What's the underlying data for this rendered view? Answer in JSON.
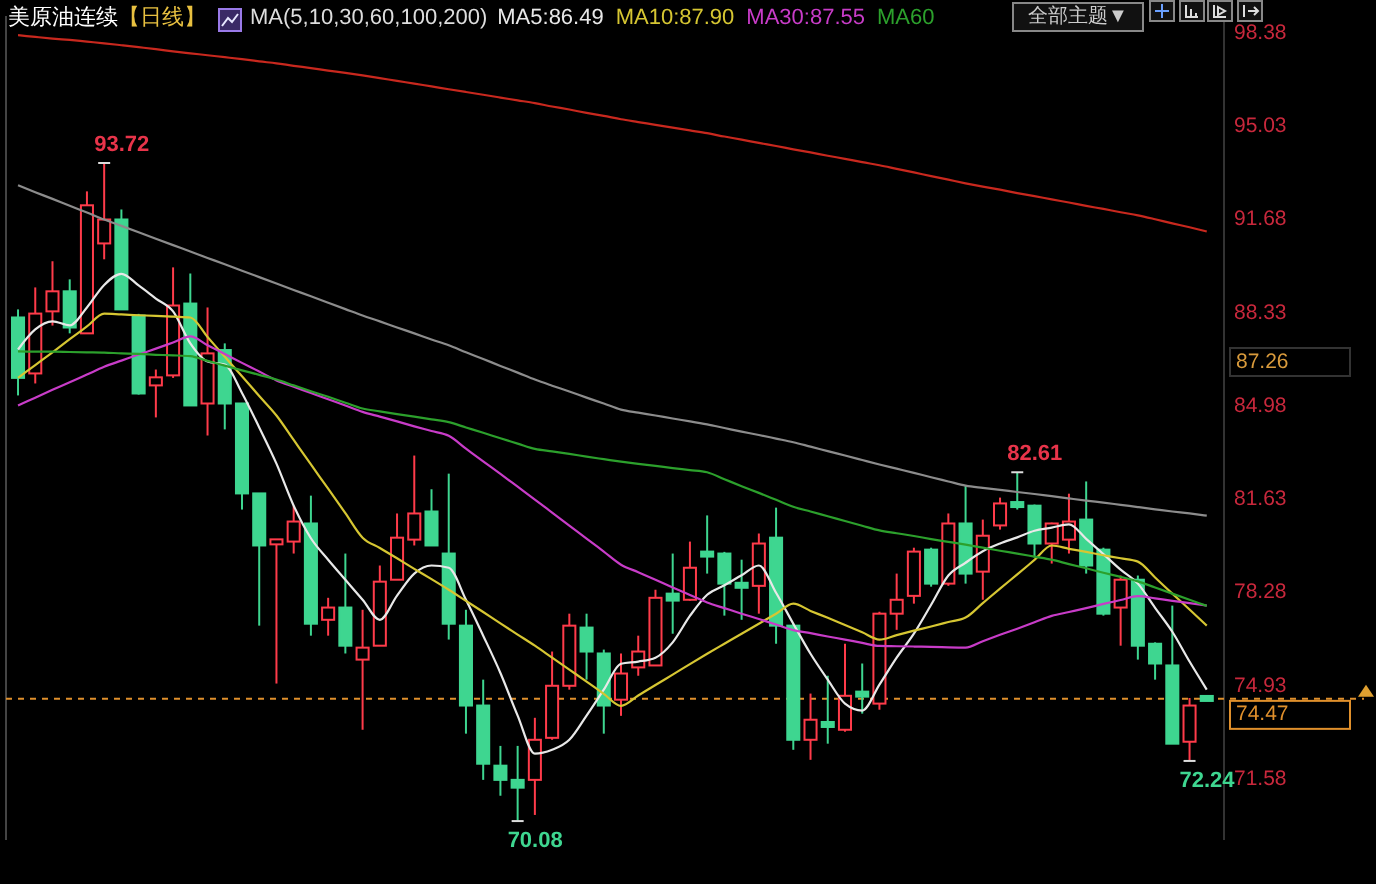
{
  "chart_data": {
    "type": "candlestick",
    "title": "美原油连续",
    "subtitle": "【日线】",
    "annotations": [
      "MA(5,10,30,60,100,200)",
      "全部主题▼",
      "87.26",
      "93.72",
      "82.61",
      "70.08",
      "72.24"
    ],
    "categories": [
      null,
      null,
      null,
      null,
      null,
      null,
      null,
      null,
      null,
      null,
      null,
      null,
      null,
      null,
      null,
      null,
      null,
      null,
      null,
      null,
      null,
      null,
      null,
      null,
      null,
      null,
      null,
      null,
      null,
      null,
      null,
      null,
      null,
      null,
      null,
      null,
      null,
      null,
      null,
      null,
      null,
      null,
      null,
      null,
      null,
      null,
      null,
      null,
      null,
      null,
      null,
      null,
      null,
      null,
      null,
      null,
      null,
      null,
      null,
      null,
      null,
      null,
      null,
      null,
      null,
      null,
      null,
      null,
      null,
      null
    ],
    "ohlc": [
      [
        88.17,
        88.46,
        85.37,
        86.0
      ],
      [
        86.16,
        89.25,
        85.8,
        88.31
      ],
      [
        88.39,
        90.19,
        87.88,
        89.11
      ],
      [
        89.11,
        89.54,
        87.6,
        87.81
      ],
      [
        87.6,
        92.7,
        87.6,
        92.2
      ],
      [
        90.83,
        93.72,
        90.26,
        91.69
      ],
      [
        91.69,
        92.05,
        88.46,
        88.46
      ],
      [
        88.24,
        88.3,
        85.4,
        85.44
      ],
      [
        85.73,
        86.3,
        84.58,
        86.02
      ],
      [
        86.09,
        89.97,
        86.0,
        88.6
      ],
      [
        88.67,
        89.75,
        85.01,
        85.01
      ],
      [
        85.08,
        88.53,
        83.93,
        86.88
      ],
      [
        87.0,
        87.24,
        84.15,
        85.08
      ],
      [
        85.08,
        85.1,
        81.27,
        81.85
      ],
      [
        81.85,
        81.85,
        77.1,
        79.98
      ],
      [
        80.1,
        80.2,
        75.02,
        80.12
      ],
      [
        80.12,
        81.41,
        79.69,
        80.84
      ],
      [
        80.77,
        81.77,
        76.74,
        77.17
      ],
      [
        77.31,
        78.1,
        76.74,
        77.75
      ],
      [
        77.75,
        79.69,
        76.1,
        76.38
      ],
      [
        75.88,
        77.67,
        73.36,
        76.31
      ],
      [
        76.38,
        79.26,
        76.38,
        78.68
      ],
      [
        78.75,
        81.13,
        78.75,
        80.26
      ],
      [
        80.19,
        83.21,
        79.98,
        81.13
      ],
      [
        81.2,
        82.0,
        79.98,
        79.98
      ],
      [
        79.69,
        82.56,
        76.6,
        77.17
      ],
      [
        77.1,
        77.67,
        73.22,
        74.23
      ],
      [
        74.23,
        75.16,
        71.56,
        72.14
      ],
      [
        72.07,
        72.78,
        70.99,
        71.56
      ],
      [
        71.56,
        72.78,
        70.08,
        71.28
      ],
      [
        71.56,
        73.79,
        70.3,
        73.0
      ],
      [
        73.07,
        76.17,
        73.0,
        74.94
      ],
      [
        74.94,
        77.53,
        74.8,
        77.1
      ],
      [
        77.03,
        77.53,
        75.16,
        76.17
      ],
      [
        76.1,
        76.24,
        73.22,
        74.23
      ],
      [
        74.44,
        76.1,
        73.86,
        75.38
      ],
      [
        75.6,
        76.74,
        75.3,
        76.17
      ],
      [
        75.67,
        78.39,
        75.67,
        78.1
      ],
      [
        78.25,
        79.69,
        76.81,
        78.0
      ],
      [
        78.03,
        80.12,
        78.0,
        79.18
      ],
      [
        79.72,
        81.06,
        78.97,
        79.62
      ],
      [
        79.69,
        79.75,
        77.46,
        78.61
      ],
      [
        78.6,
        79.47,
        77.31,
        78.5
      ],
      [
        78.53,
        80.41,
        77.53,
        80.05
      ],
      [
        80.26,
        81.34,
        76.45,
        77.1
      ],
      [
        77.1,
        77.2,
        72.64,
        73.0
      ],
      [
        73.0,
        74.66,
        72.28,
        73.72
      ],
      [
        73.6,
        75.3,
        72.86,
        73.5
      ],
      [
        73.36,
        76.45,
        73.29,
        74.58
      ],
      [
        74.7,
        75.74,
        73.94,
        74.58
      ],
      [
        74.3,
        77.6,
        74.08,
        77.53
      ],
      [
        77.53,
        78.97,
        76.95,
        78.03
      ],
      [
        78.17,
        79.9,
        77.89,
        79.76
      ],
      [
        79.83,
        79.9,
        78.5,
        78.61
      ],
      [
        78.61,
        81.13,
        78.53,
        80.77
      ],
      [
        80.77,
        82.13,
        78.61,
        78.97
      ],
      [
        79.04,
        80.91,
        78.03,
        80.33
      ],
      [
        80.7,
        81.7,
        80.55,
        81.49
      ],
      [
        81.49,
        82.61,
        81.27,
        81.41
      ],
      [
        81.41,
        81.45,
        79.55,
        80.05
      ],
      [
        80.05,
        80.8,
        79.33,
        80.77
      ],
      [
        80.19,
        81.84,
        79.69,
        80.84
      ],
      [
        80.91,
        82.28,
        78.97,
        79.26
      ],
      [
        79.83,
        79.9,
        77.46,
        77.53
      ],
      [
        77.75,
        78.9,
        76.38,
        78.75
      ],
      [
        78.75,
        78.9,
        75.88,
        76.38
      ],
      [
        76.45,
        76.5,
        75.16,
        75.74
      ],
      [
        75.67,
        77.82,
        72.86,
        72.86
      ],
      [
        72.93,
        74.5,
        72.24,
        74.23
      ],
      [
        74.5,
        74.55,
        74.4,
        74.47
      ]
    ],
    "series": [
      {
        "type": "line",
        "name": "MA5:86.49",
        "color": "#e8e8e8",
        "values": [
          87.02,
          87.74,
          88.03,
          87.89,
          88.53,
          89.34,
          89.74,
          89.32,
          88.85,
          88.39,
          87.24,
          86.59,
          86.48,
          85.46,
          84.22,
          82.92,
          81.41,
          80.24,
          79.47,
          78.75,
          78.03,
          77.31,
          78.18,
          78.97,
          79.26,
          79.18,
          78.03,
          76.74,
          75.4,
          73.87,
          72.5,
          72.64,
          73.0,
          73.87,
          74.8,
          75.73,
          75.81,
          75.95,
          76.5,
          77.45,
          78.21,
          78.55,
          78.91,
          79.26,
          78.28,
          77.17,
          76.09,
          75.16,
          74.3,
          74.05,
          74.98,
          75.95,
          76.81,
          77.85,
          78.9,
          79.36,
          79.77,
          80.05,
          80.27,
          80.51,
          80.62,
          80.74,
          80.22,
          79.67,
          79.11,
          78.61,
          77.74,
          76.88,
          75.81,
          74.8
        ]
      },
      {
        "type": "line",
        "name": "MA10:87.90",
        "color": "#d6c632",
        "values": [
          86.0,
          86.46,
          86.92,
          87.39,
          87.85,
          88.31,
          88.28,
          88.25,
          88.23,
          88.2,
          88.17,
          87.47,
          86.76,
          86.06,
          85.35,
          84.65,
          83.77,
          82.89,
          82.02,
          81.14,
          80.26,
          79.89,
          79.52,
          79.14,
          78.77,
          78.39,
          77.99,
          77.59,
          77.18,
          76.78,
          76.38,
          75.95,
          75.52,
          75.09,
          74.65,
          74.22,
          74.59,
          74.97,
          75.34,
          75.72,
          76.09,
          76.45,
          76.81,
          77.17,
          77.53,
          77.89,
          77.63,
          77.38,
          77.12,
          76.86,
          76.6,
          76.76,
          76.92,
          77.07,
          77.23,
          77.39,
          77.91,
          78.43,
          78.94,
          79.46,
          79.98,
          79.86,
          79.75,
          79.63,
          79.52,
          79.4,
          78.83,
          78.25,
          77.68,
          77.1
        ]
      },
      {
        "type": "line",
        "name": "MA30:87.55",
        "color": "#c83cc8",
        "values": [
          85.01,
          85.29,
          85.57,
          85.84,
          86.12,
          86.4,
          86.62,
          86.84,
          87.05,
          87.27,
          87.49,
          87.17,
          86.86,
          86.54,
          86.23,
          85.91,
          85.68,
          85.46,
          85.23,
          85.01,
          84.78,
          84.61,
          84.44,
          84.26,
          84.09,
          83.92,
          83.46,
          83.0,
          82.55,
          82.09,
          81.63,
          81.16,
          80.69,
          80.23,
          79.76,
          79.29,
          79.02,
          78.75,
          78.47,
          78.2,
          77.93,
          77.73,
          77.53,
          77.34,
          77.14,
          76.94,
          76.83,
          76.71,
          76.6,
          76.48,
          76.37,
          76.36,
          76.35,
          76.34,
          76.32,
          76.31,
          76.54,
          76.77,
          76.99,
          77.22,
          77.45,
          77.59,
          77.73,
          77.88,
          78.02,
          78.16,
          78.08,
          77.99,
          77.91,
          77.82
        ]
      },
      {
        "type": "line",
        "name": "MA60",
        "color": "#2ca02c",
        "values": [
          86.95,
          86.94,
          86.94,
          86.93,
          86.92,
          86.91,
          86.88,
          86.86,
          86.83,
          86.81,
          86.78,
          86.61,
          86.44,
          86.27,
          86.11,
          85.94,
          85.73,
          85.52,
          85.32,
          85.11,
          84.9,
          84.8,
          84.7,
          84.61,
          84.51,
          84.41,
          84.22,
          84.03,
          83.83,
          83.64,
          83.45,
          83.36,
          83.27,
          83.17,
          83.08,
          82.99,
          82.91,
          82.84,
          82.76,
          82.69,
          82.61,
          82.36,
          82.11,
          81.87,
          81.62,
          81.37,
          81.2,
          81.03,
          80.86,
          80.69,
          80.52,
          80.42,
          80.32,
          80.21,
          80.11,
          80.01,
          79.9,
          79.79,
          79.69,
          79.58,
          79.47,
          79.31,
          79.16,
          79.0,
          78.85,
          78.69,
          78.47,
          78.25,
          78.03,
          77.81
        ]
      },
      {
        "type": "line",
        "color": "#8c8c8c",
        "values": [
          92.92,
          92.67,
          92.43,
          92.18,
          91.94,
          91.69,
          91.46,
          91.23,
          91.0,
          90.77,
          90.54,
          90.31,
          90.08,
          89.85,
          89.62,
          89.39,
          89.16,
          88.93,
          88.7,
          88.47,
          88.24,
          88.03,
          87.81,
          87.6,
          87.38,
          87.17,
          86.92,
          86.68,
          86.43,
          86.19,
          85.94,
          85.72,
          85.51,
          85.29,
          85.08,
          84.86,
          84.75,
          84.65,
          84.54,
          84.44,
          84.33,
          84.2,
          84.07,
          83.95,
          83.82,
          83.69,
          83.53,
          83.37,
          83.21,
          83.05,
          82.89,
          82.74,
          82.59,
          82.43,
          82.28,
          82.13,
          82.05,
          81.98,
          81.9,
          81.83,
          81.75,
          81.67,
          81.59,
          81.52,
          81.44,
          81.36,
          81.28,
          81.2,
          81.13,
          81.05
        ]
      },
      {
        "type": "line",
        "color": "#c8281e",
        "values": [
          98.31,
          98.25,
          98.19,
          98.14,
          98.08,
          98.02,
          97.95,
          97.88,
          97.81,
          97.73,
          97.66,
          97.59,
          97.52,
          97.45,
          97.37,
          97.3,
          97.21,
          97.13,
          97.04,
          96.96,
          96.87,
          96.77,
          96.67,
          96.57,
          96.47,
          96.37,
          96.27,
          96.17,
          96.07,
          95.97,
          95.87,
          95.75,
          95.64,
          95.52,
          95.41,
          95.29,
          95.19,
          95.09,
          94.99,
          94.89,
          94.79,
          94.67,
          94.56,
          94.44,
          94.33,
          94.21,
          94.1,
          93.98,
          93.87,
          93.75,
          93.64,
          93.51,
          93.38,
          93.25,
          93.12,
          92.99,
          92.87,
          92.76,
          92.64,
          92.53,
          92.41,
          92.3,
          92.18,
          92.07,
          91.95,
          91.84,
          91.7,
          91.55,
          91.41,
          91.26
        ]
      }
    ],
    "ylim": [
      69.4,
      99.0
    ],
    "yticks": [
      98.38,
      95.03,
      91.68,
      88.33,
      84.98,
      81.63,
      78.28,
      74.93,
      71.58
    ],
    "ref_lines": [
      {
        "axis": "y",
        "value": 74.47,
        "label": "74.47",
        "color": "#e0902c",
        "line_style": "dashed"
      }
    ],
    "legend": "top"
  }
}
